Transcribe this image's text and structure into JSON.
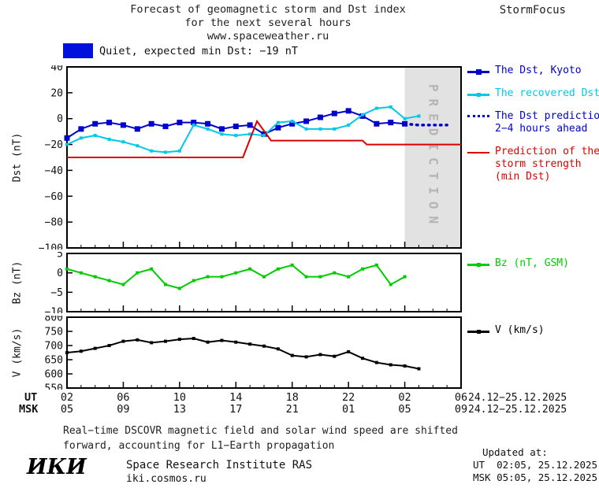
{
  "header": {
    "title_line1": "Forecast of geomagnetic storm and Dst index",
    "title_line2": "for the next several hours",
    "title_line3": "www.spaceweather.ru",
    "brand": "StormFocus"
  },
  "status": {
    "label": "Quiet, expected min Dst: −19 nT",
    "box_color": "#0011dd"
  },
  "legends": {
    "dst_kyoto": "The Dst, Kyoto",
    "recovered": "The recovered Dst",
    "prediction_line1": "The Dst prediction",
    "prediction_line2": "2−4 hours ahead",
    "storm_line1": "Prediction of the",
    "storm_line2": "storm strength",
    "storm_line3": "(min Dst)",
    "bz": "Bz (nT, GSM)",
    "v": "V (km/s)"
  },
  "xaxis": {
    "ut_label": "UT",
    "msk_label": "MSK",
    "tick_hours": [
      2,
      6,
      10,
      14,
      18,
      22,
      26,
      30
    ],
    "ut_ticks": [
      "02",
      "06",
      "10",
      "14",
      "18",
      "22",
      "02",
      "06"
    ],
    "msk_ticks": [
      "05",
      "09",
      "13",
      "17",
      "21",
      "01",
      "05",
      "09"
    ],
    "ut_dates": "24.12−25.12.2025",
    "msk_dates": "24.12−25.12.2025"
  },
  "footer": {
    "note_line1": "Real−time DSCOVR magnetic field and solar wind speed are shifted",
    "note_line2": "forward, accounting for L1−Earth propagation",
    "logo": "ИКИ",
    "institute": "Space Research Institute RAS",
    "site": "iki.cosmos.ru",
    "updated_label": "Updated at:",
    "updated_ut": "UT  02:05, 25.12.2025",
    "updated_msk": "MSK 05:05, 25.12.2025"
  },
  "chart_data": [
    {
      "type": "line",
      "panel": "dst",
      "ylabel": "Dst (nT)",
      "ylim": [
        -100,
        40
      ],
      "yticks": [
        40,
        20,
        0,
        -20,
        -40,
        -60,
        -80,
        -100
      ],
      "xlim": [
        2,
        30
      ],
      "band": {
        "label": "PREDICTION",
        "x_start": 26,
        "x_end": 30,
        "fill": "#e2e2e2",
        "label_color": "#b5b5b5"
      },
      "series": [
        {
          "id": "dst-kyoto",
          "name": "The Dst, Kyoto",
          "color": "#0000cc",
          "marker": "square",
          "marker_size": 7,
          "width": 2,
          "x": [
            2,
            3,
            4,
            5,
            6,
            7,
            8,
            9,
            10,
            11,
            12,
            13,
            14,
            15,
            16,
            17,
            18,
            19,
            20,
            21,
            22,
            23,
            24,
            25,
            26
          ],
          "y": [
            -15,
            -8,
            -4,
            -3,
            -5,
            -8,
            -4,
            -6,
            -3,
            -3,
            -4,
            -8,
            -6,
            -5,
            -12,
            -7,
            -4,
            -2,
            1,
            4,
            6,
            2,
            -4,
            -3,
            -4
          ]
        },
        {
          "id": "recovered-dst",
          "name": "The recovered Dst",
          "color": "#00c8e8",
          "marker": "square",
          "marker_size": 4,
          "width": 2,
          "x": [
            2,
            3,
            4,
            5,
            6,
            7,
            8,
            9,
            10,
            11,
            12,
            13,
            14,
            15,
            16,
            17,
            18,
            19,
            20,
            21,
            22,
            23,
            24,
            25,
            26,
            27
          ],
          "y": [
            -20,
            -15,
            -13,
            -16,
            -18,
            -21,
            -25,
            -26,
            -25,
            -5,
            -8,
            -12,
            -13,
            -12,
            -13,
            -3,
            -2,
            -8,
            -8,
            -8,
            -5,
            3,
            8,
            9,
            0,
            2
          ]
        },
        {
          "id": "dst-prediction",
          "name": "The Dst prediction 2−4 hours ahead",
          "color": "#0000cc",
          "style": "dotted",
          "width": 3,
          "x": [
            26,
            27,
            28,
            29
          ],
          "y": [
            -4,
            -5,
            -5,
            -5
          ]
        },
        {
          "id": "storm-strength-prediction",
          "name": "Prediction of the storm strength (min Dst)",
          "color": "#dd0000",
          "width": 2,
          "x": [
            2,
            14.5,
            15.5,
            16.5,
            23,
            23.3,
            30
          ],
          "y": [
            -30,
            -30,
            -2,
            -17,
            -17,
            -20,
            -20
          ]
        }
      ]
    },
    {
      "type": "line",
      "panel": "bz",
      "ylabel": "Bz (nT)",
      "ylim": [
        -10,
        5
      ],
      "yticks": [
        5,
        0,
        -5,
        -10
      ],
      "xlim": [
        2,
        30
      ],
      "series": [
        {
          "id": "bz-gsm",
          "name": "Bz (nT, GSM)",
          "color": "#00cc00",
          "marker": "square",
          "marker_size": 4,
          "width": 2,
          "x": [
            2,
            3,
            4,
            5,
            6,
            7,
            8,
            9,
            10,
            11,
            12,
            13,
            14,
            15,
            16,
            17,
            18,
            19,
            20,
            21,
            22,
            23,
            24,
            25,
            26
          ],
          "y": [
            1,
            0,
            -1,
            -2,
            -3,
            0,
            1,
            -3,
            -4,
            -2,
            -1,
            -1,
            0,
            1,
            -1,
            1,
            2,
            -1,
            -1,
            0,
            -1,
            1,
            2,
            -3,
            -1
          ]
        }
      ]
    },
    {
      "type": "line",
      "panel": "v",
      "ylabel": "V (km/s)",
      "ylim": [
        550,
        800
      ],
      "yticks": [
        800,
        750,
        700,
        650,
        600,
        550
      ],
      "xlim": [
        2,
        30
      ],
      "series": [
        {
          "id": "solar-wind-speed",
          "name": "V (km/s)",
          "color": "#000000",
          "marker": "square",
          "marker_size": 4,
          "width": 2,
          "x": [
            2,
            3,
            4,
            5,
            6,
            7,
            8,
            9,
            10,
            11,
            12,
            13,
            14,
            15,
            16,
            17,
            18,
            19,
            20,
            21,
            22,
            23,
            24,
            25,
            26,
            27
          ],
          "y": [
            675,
            680,
            690,
            700,
            715,
            720,
            710,
            715,
            722,
            725,
            712,
            718,
            712,
            705,
            698,
            688,
            665,
            660,
            668,
            662,
            678,
            655,
            640,
            632,
            628,
            618
          ]
        }
      ]
    }
  ]
}
